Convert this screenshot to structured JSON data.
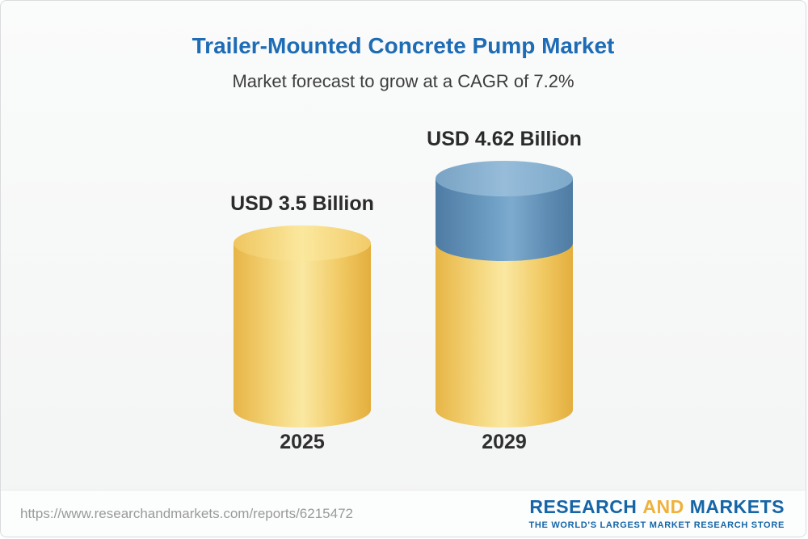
{
  "header": {
    "title": "Trailer-Mounted Concrete Pump Market",
    "subtitle": "Market forecast to grow at a CAGR of 7.2%"
  },
  "chart_data": {
    "type": "bar",
    "title": "Trailer-Mounted Concrete Pump Market",
    "subtitle": "Market forecast to grow at a CAGR of 7.2%",
    "unit": "USD Billion",
    "categories": [
      "2025",
      "2029"
    ],
    "values": [
      3.5,
      4.62
    ],
    "value_labels": [
      "USD 3.5 Billion",
      "USD 4.62 Billion"
    ],
    "cagr_percent": 7.2,
    "bar_color": "#f2cd68",
    "growth_segment_color": "#6d9cc3",
    "ylim": [
      0,
      4.62
    ],
    "grid": false,
    "legend": false
  },
  "footer": {
    "url": "https://www.researchandmarkets.com/reports/6215472",
    "logo_research": "RESEARCH",
    "logo_and": "AND",
    "logo_markets": "MARKETS",
    "tagline": "THE WORLD'S LARGEST MARKET RESEARCH STORE"
  }
}
